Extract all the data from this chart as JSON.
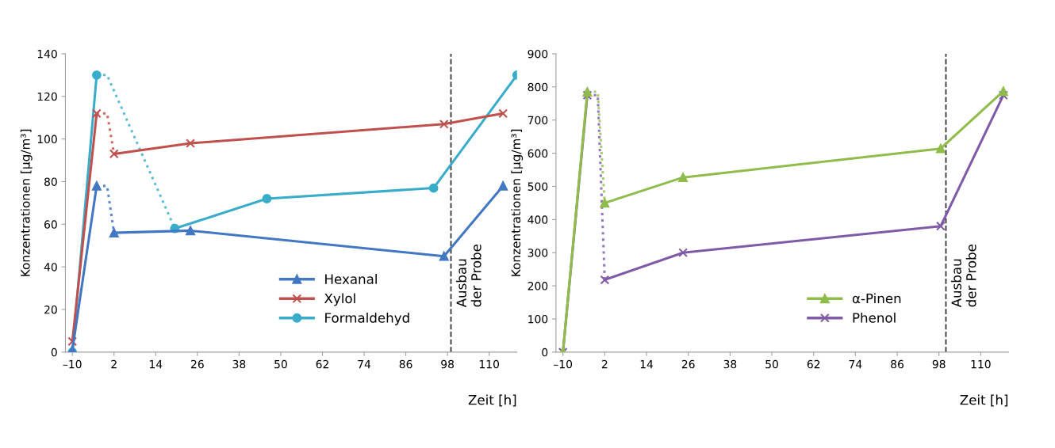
{
  "chart_data": [
    {
      "type": "line",
      "xlabel": "Zeit [h]",
      "ylabel": "Konzentrationen [µg/m³]",
      "xlim": [
        -12,
        118
      ],
      "ylim": [
        0,
        140
      ],
      "xticks": [
        {
          "value": -10,
          "label": "–10"
        },
        2,
        14,
        26,
        38,
        50,
        62,
        74,
        86,
        98,
        110
      ],
      "yticks": [
        0,
        20,
        40,
        60,
        80,
        100,
        120,
        140
      ],
      "grid": false,
      "legend": "bottom right",
      "line_style": "solid",
      "ref_lines": [
        {
          "axis": "x",
          "value": 99,
          "label": "Ausbau\nder Probe",
          "color": "#333333",
          "line_style": "dashed"
        }
      ],
      "series": [
        {
          "name": "Hexanal",
          "color": "#4277c4",
          "marker": "triangle",
          "x": [
            -10,
            -3,
            0,
            2,
            24,
            97,
            114
          ],
          "values": [
            1,
            78,
            null,
            56,
            57,
            45,
            78
          ]
        },
        {
          "name": "Xylol",
          "color": "#c0504d",
          "marker": "cross",
          "x": [
            -10,
            -3,
            0,
            2,
            24,
            97,
            114
          ],
          "values": [
            5,
            112,
            null,
            93,
            98,
            107,
            112
          ]
        },
        {
          "name": "Formaldehyd",
          "color": "#38acc8",
          "marker": "circle",
          "x": [
            -10,
            -3,
            0,
            19.5,
            46,
            94,
            118
          ],
          "values": [
            0,
            130,
            null,
            58,
            72,
            77,
            130
          ]
        },
        {
          "color": "#5a8ad0",
          "marker": "none",
          "line_style": "dotted",
          "x": [
            -3,
            0,
            2
          ],
          "values": [
            78,
            78,
            56
          ]
        },
        {
          "color": "#d06a66",
          "marker": "none",
          "line_style": "dotted",
          "x": [
            -3,
            0,
            2
          ],
          "values": [
            112,
            112,
            93
          ]
        },
        {
          "color": "#5cbcd6",
          "marker": "none",
          "line_style": "dotted",
          "x": [
            -3,
            0,
            19.5
          ],
          "values": [
            130,
            130,
            58
          ]
        }
      ]
    },
    {
      "type": "line",
      "xlabel": "Zeit [h]",
      "ylabel": "Konzentrationen [µg/m³]",
      "xlim": [
        -12,
        118
      ],
      "ylim": [
        0,
        900
      ],
      "xticks": [
        {
          "value": -10,
          "label": "–10"
        },
        2,
        14,
        26,
        38,
        50,
        62,
        74,
        86,
        98,
        110
      ],
      "yticks": [
        0,
        100,
        200,
        300,
        400,
        500,
        600,
        700,
        800,
        900
      ],
      "grid": false,
      "legend": "bottom right",
      "line_style": "solid",
      "ref_lines": [
        {
          "axis": "x",
          "value": 100,
          "label": "Ausbau\nder Probe",
          "color": "#333333",
          "line_style": "dashed"
        }
      ],
      "series": [
        {
          "name": "α-Pinen",
          "color": "#8fbc4a",
          "marker": "triangle",
          "x": [
            -10,
            -3,
            0,
            2,
            24.5,
            98.5,
            116.5
          ],
          "values": [
            0,
            785,
            null,
            450,
            527,
            614,
            787
          ]
        },
        {
          "name": "Phenol",
          "color": "#7f5aa6",
          "marker": "cross",
          "x": [
            -10,
            -3,
            0,
            2,
            24.5,
            98.5,
            116.5
          ],
          "values": [
            0,
            775,
            null,
            218,
            300,
            380,
            775
          ]
        },
        {
          "color": "#a5cc6c",
          "marker": "none",
          "line_style": "dotted",
          "x": [
            -3,
            0,
            2
          ],
          "values": [
            785,
            785,
            450
          ]
        },
        {
          "color": "#9578ba",
          "marker": "none",
          "line_style": "dotted",
          "x": [
            -3,
            0,
            2
          ],
          "values": [
            775,
            775,
            218
          ]
        }
      ]
    }
  ]
}
